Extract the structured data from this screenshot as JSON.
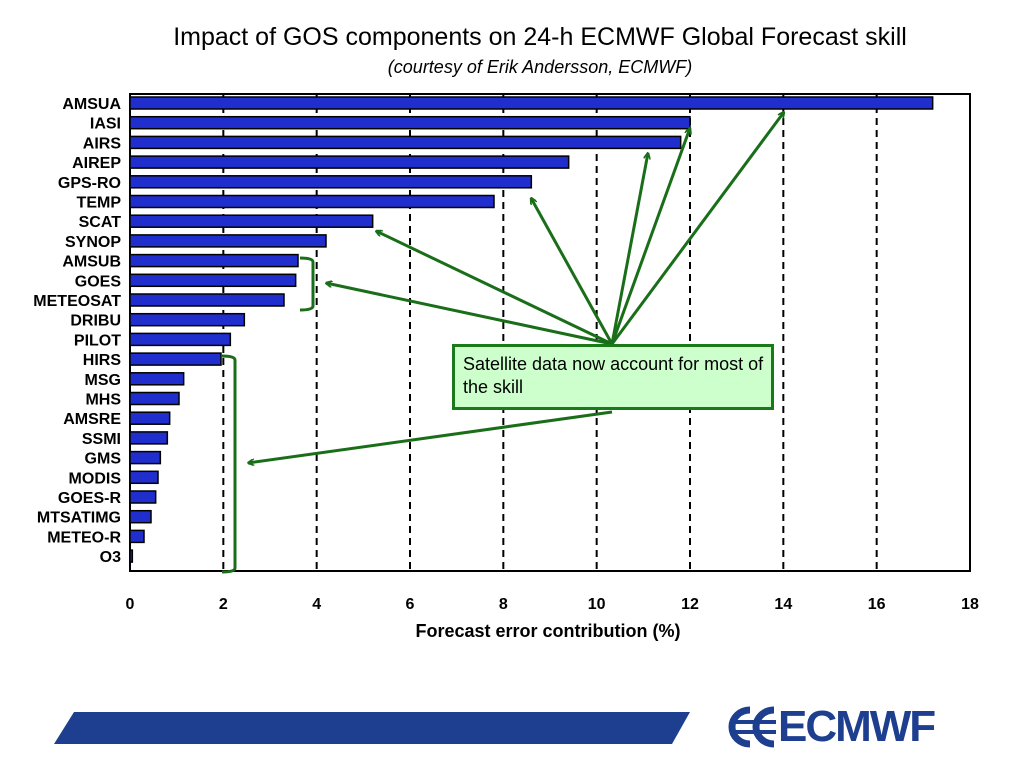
{
  "title": "Impact of GOS components on 24-h ECMWF Global Forecast skill",
  "subtitle": "(courtesy of Erik Andersson, ECMWF)",
  "callout_text": "Satellite data now account for most of the skill",
  "logo_text": "ECMWF",
  "colors": {
    "bar": "#1f2ecc",
    "bar_stroke": "#000000",
    "arrow": "#1a6e1a",
    "callout_bg": "#ccffcc",
    "footer": "#1e3f8f"
  },
  "chart_data": {
    "type": "bar",
    "orientation": "horizontal",
    "title": "Impact of GOS components on 24-h ECMWF Global Forecast skill",
    "subtitle": "(courtesy of Erik Andersson, ECMWF)",
    "xlabel": "Forecast error contribution (%)",
    "ylabel": "",
    "xlim": [
      0,
      18
    ],
    "xticks": [
      0,
      2,
      4,
      6,
      8,
      10,
      12,
      14,
      16,
      18
    ],
    "grid": "vertical dashed lines at 2, 4, 6, 8, 10, 12, 14, 16",
    "categories": [
      "AMSUA",
      "IASI",
      "AIRS",
      "AIREP",
      "GPS-RO",
      "TEMP",
      "SCAT",
      "SYNOP",
      "AMSUB",
      "GOES",
      "METEOSAT",
      "DRIBU",
      "PILOT",
      "HIRS",
      "MSG",
      "MHS",
      "AMSRE",
      "SSMI",
      "GMS",
      "MODIS",
      "GOES-R",
      "MTSATIMG",
      "METEO-R",
      "O3"
    ],
    "values": [
      17.2,
      12.0,
      11.8,
      9.4,
      8.6,
      7.8,
      5.2,
      4.2,
      3.6,
      3.55,
      3.3,
      2.45,
      2.15,
      1.95,
      1.15,
      1.05,
      0.85,
      0.8,
      0.65,
      0.6,
      0.55,
      0.45,
      0.3,
      0.05
    ]
  }
}
